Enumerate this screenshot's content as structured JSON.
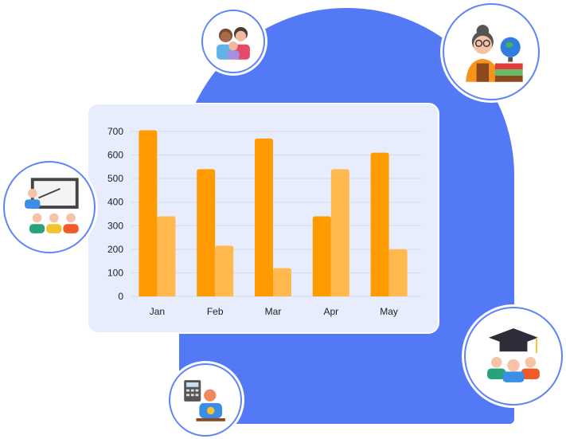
{
  "chart_data": {
    "type": "bar",
    "categories": [
      "Jan",
      "Feb",
      "Mar",
      "Apr",
      "May"
    ],
    "series": [
      {
        "values": [
          705,
          540,
          670,
          340,
          610
        ],
        "color": "#ff9a00"
      },
      {
        "values": [
          340,
          215,
          120,
          540,
          200
        ],
        "color": "#ffb94f"
      }
    ],
    "yticks": [
      "0",
      "100",
      "200",
      "300",
      "400",
      "500",
      "600",
      "700"
    ],
    "ylim": [
      0,
      700
    ],
    "grid": true,
    "title": "",
    "xlabel": "",
    "ylabel": ""
  },
  "colors": {
    "backdrop": "#5479f6",
    "card": "#e8edfd",
    "bubble_border": "#5f84f7"
  },
  "icons": [
    "family-icon",
    "teacher-globe-icon",
    "classroom-presentation-icon",
    "graduation-students-icon",
    "accountant-calculator-icon"
  ]
}
